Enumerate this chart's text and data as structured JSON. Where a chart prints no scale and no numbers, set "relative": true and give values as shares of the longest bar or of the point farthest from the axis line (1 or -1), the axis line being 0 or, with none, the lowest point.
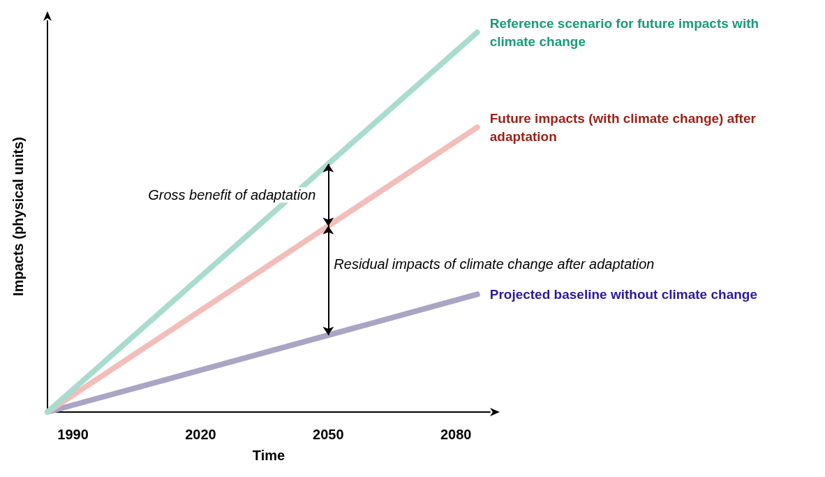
{
  "chart_data": {
    "type": "line",
    "relative": true,
    "xlabel": "Time",
    "ylabel": "Impacts (physical units)",
    "xlim": [
      1984,
      2088
    ],
    "xticks": [
      1990,
      2020,
      2050,
      2080
    ],
    "grid": false,
    "legend": false,
    "line_style": "solid",
    "x": [
      1984,
      2085
    ],
    "series": [
      {
        "name": "Reference scenario for future impacts with climate change",
        "color": "#a9dccf",
        "values": [
          0,
          1
        ]
      },
      {
        "name": "Future impacts (with climate change) after adaptation",
        "color": "#f3bdb9",
        "values": [
          0,
          0.75
        ]
      },
      {
        "name": "Projected baseline without climate change",
        "color": "#aaa5c4",
        "values": [
          0,
          0.31
        ]
      }
    ],
    "annotations": [
      "Gross benefit of adaptation",
      "Residual impacts of climate change after adaptation"
    ]
  }
}
